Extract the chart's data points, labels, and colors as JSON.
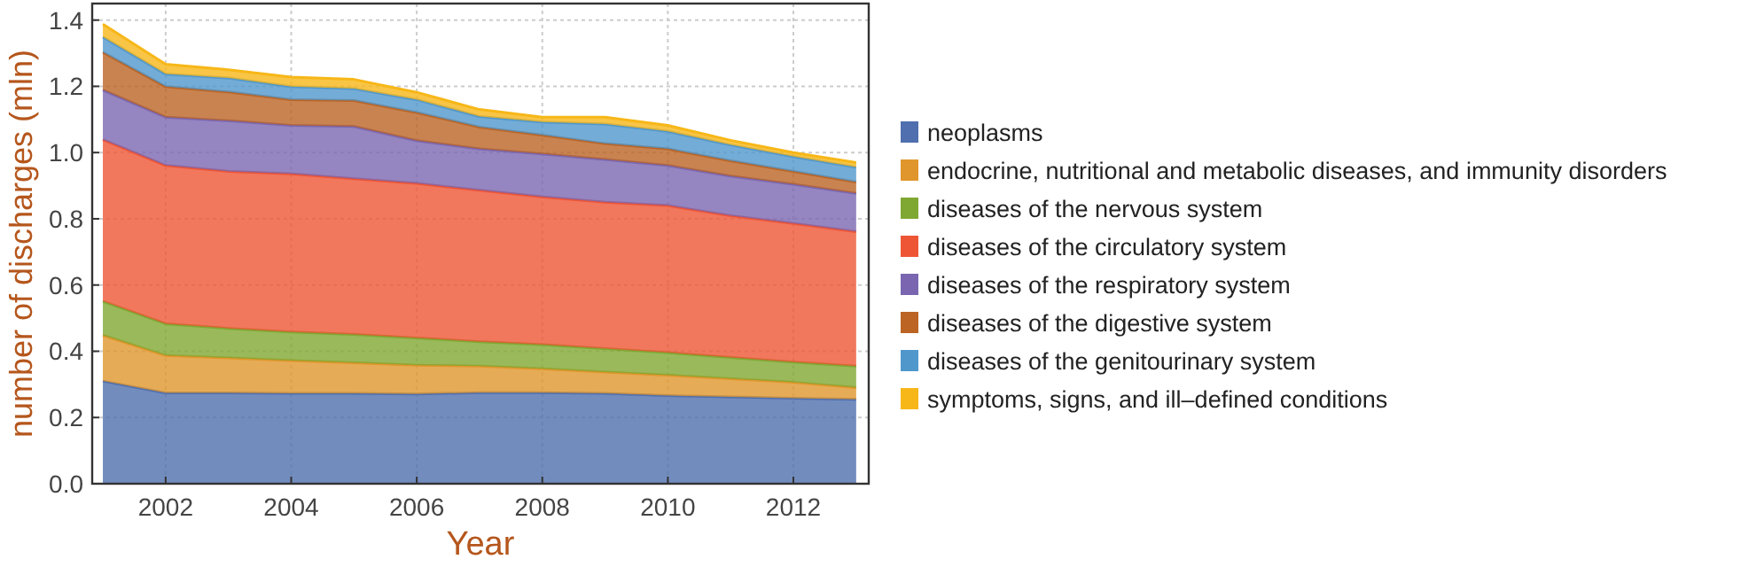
{
  "chart_data": {
    "type": "area",
    "stacked": true,
    "xlabel": "Year",
    "ylabel": "number of discharges (mln)",
    "x": [
      2001,
      2002,
      2003,
      2004,
      2005,
      2006,
      2007,
      2008,
      2009,
      2010,
      2011,
      2012,
      2013
    ],
    "xlim": [
      2000.83,
      2013.2
    ],
    "xticks": [
      2002,
      2004,
      2006,
      2008,
      2010,
      2012
    ],
    "ylim": [
      0,
      1.45
    ],
    "yticks": [
      {
        "value": 0,
        "label": "0.0"
      },
      0.2,
      0.4,
      0.6,
      0.8,
      {
        "value": 1,
        "label": "1.0"
      },
      1.2,
      1.4
    ],
    "grid": true,
    "legend": "right",
    "series": [
      {
        "name": "neoplasms",
        "color": "#4f6fae",
        "values": [
          0.31,
          0.274,
          0.274,
          0.273,
          0.273,
          0.271,
          0.275,
          0.275,
          0.273,
          0.266,
          0.262,
          0.258,
          0.255
        ]
      },
      {
        "name": "endocrine, nutritional and metabolic diseases, and immunity disorders",
        "color": "#e0962c",
        "values": [
          0.138,
          0.113,
          0.106,
          0.099,
          0.092,
          0.087,
          0.08,
          0.072,
          0.064,
          0.062,
          0.055,
          0.048,
          0.035
        ]
      },
      {
        "name": "diseases of the nervous system",
        "color": "#7fa832",
        "values": [
          0.103,
          0.096,
          0.089,
          0.086,
          0.086,
          0.082,
          0.074,
          0.073,
          0.071,
          0.068,
          0.064,
          0.061,
          0.065
        ]
      },
      {
        "name": "diseases of the circulatory system",
        "color": "#ee5535",
        "values": [
          0.488,
          0.478,
          0.474,
          0.478,
          0.47,
          0.467,
          0.457,
          0.446,
          0.442,
          0.444,
          0.428,
          0.419,
          0.406
        ]
      },
      {
        "name": "diseases of the respiratory system",
        "color": "#7a66b0",
        "values": [
          0.15,
          0.146,
          0.153,
          0.146,
          0.158,
          0.129,
          0.125,
          0.13,
          0.129,
          0.121,
          0.12,
          0.118,
          0.116
        ]
      },
      {
        "name": "diseases of the digestive system",
        "color": "#bb6424",
        "values": [
          0.114,
          0.092,
          0.087,
          0.078,
          0.078,
          0.085,
          0.066,
          0.057,
          0.048,
          0.05,
          0.046,
          0.039,
          0.034
        ]
      },
      {
        "name": "diseases of the genitourinary system",
        "color": "#5097cc",
        "values": [
          0.046,
          0.038,
          0.042,
          0.039,
          0.036,
          0.039,
          0.032,
          0.039,
          0.059,
          0.053,
          0.048,
          0.045,
          0.045
        ]
      },
      {
        "name": "symptoms, signs, and ill–defined conditions",
        "color": "#f7b718",
        "values": [
          0.039,
          0.03,
          0.025,
          0.029,
          0.028,
          0.022,
          0.021,
          0.015,
          0.021,
          0.018,
          0.014,
          0.012,
          0.014
        ]
      }
    ]
  }
}
